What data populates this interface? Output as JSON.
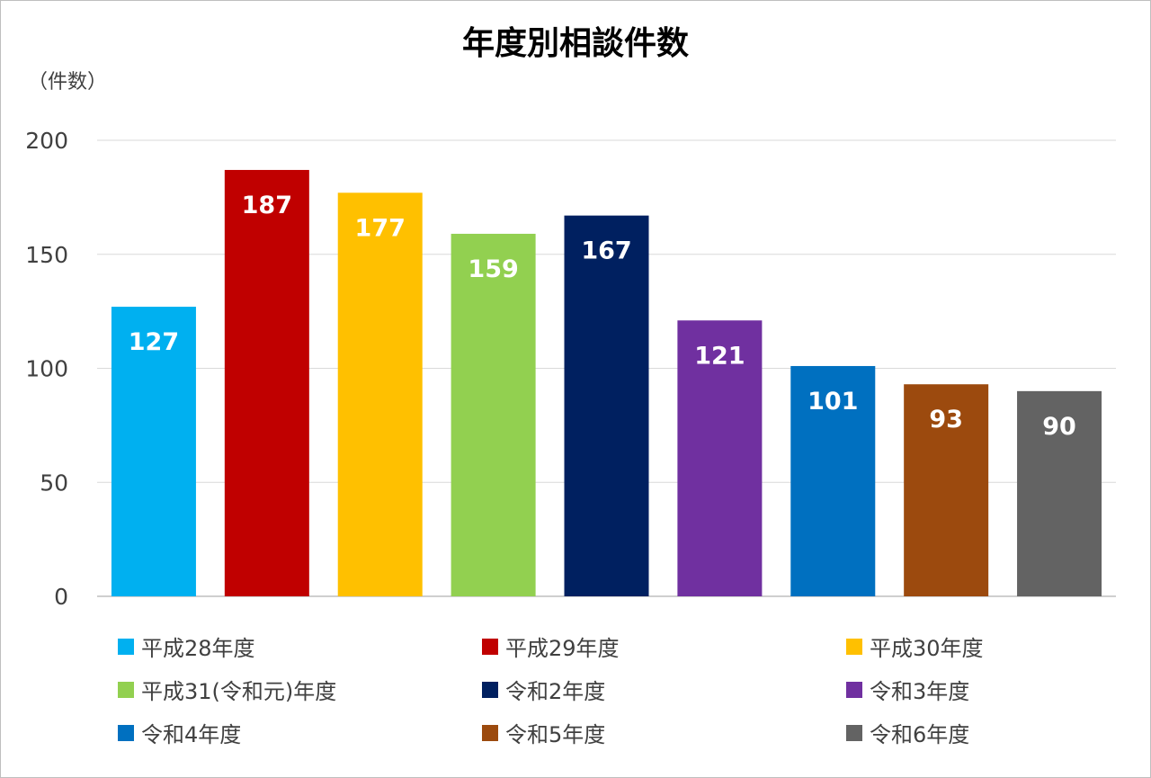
{
  "chart_data": {
    "type": "bar",
    "title": "年度別相談件数",
    "ylabel": "（件数）",
    "ylim": [
      0,
      200
    ],
    "yticks": [
      0,
      50,
      100,
      150,
      200
    ],
    "grid": true,
    "legend_position": "bottom",
    "categories": [
      "平成28年度",
      "平成29年度",
      "平成30年度",
      "平成31(令和元)年度",
      "令和2年度",
      "令和3年度",
      "令和4年度",
      "令和5年度",
      "令和6年度"
    ],
    "values": [
      127,
      187,
      177,
      159,
      167,
      121,
      101,
      93,
      90
    ],
    "colors": [
      "#00B0F0",
      "#C00000",
      "#FFC000",
      "#92D050",
      "#002060",
      "#7030A0",
      "#0070C0",
      "#9C4A0E",
      "#636363"
    ]
  }
}
